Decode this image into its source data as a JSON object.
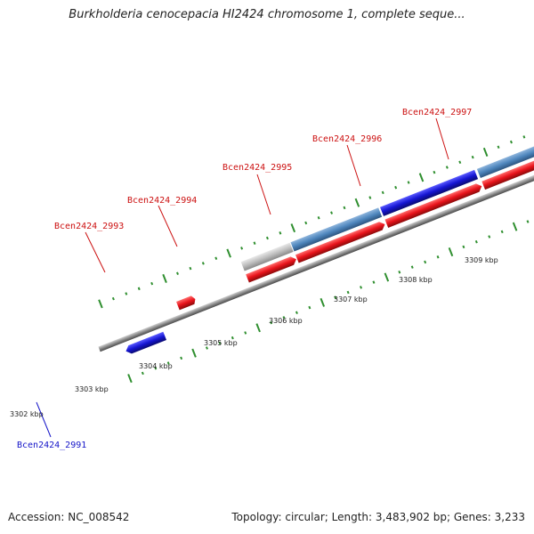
{
  "title": "Burkholderia cenocepacia HI2424 chromosome 1, complete seque...",
  "footer": {
    "accession": "Accession: NC_008542",
    "summary": "Topology: circular; Length: 3,483,902 bp; Genes: 3,233"
  },
  "colors": {
    "cds_forward": "#e8131b",
    "cds_reverse": "#1515d2",
    "gene_steelblue": "#4e86bd",
    "gene_selected": "#1515d2",
    "gene_gray": "#bdbdbd",
    "backbone": "#8a8a8a",
    "tick": "#2f8f2f",
    "label_forward": "#cc1111",
    "label_reverse": "#1414c8"
  },
  "axis": {
    "tick_labels": [
      "3302 kbp",
      "3303 kbp",
      "3304 kbp",
      "3305 kbp",
      "3306 kbp",
      "3307 kbp",
      "3308 kbp",
      "3309 kbp"
    ]
  },
  "gene_labels": [
    {
      "text": "Bcen2424_2991",
      "strand": "reverse"
    },
    {
      "text": "Bcen2424_2993",
      "strand": "forward"
    },
    {
      "text": "Bcen2424_2994",
      "strand": "forward"
    },
    {
      "text": "Bcen2424_2995",
      "strand": "forward"
    },
    {
      "text": "Bcen2424_2996",
      "strand": "forward"
    },
    {
      "text": "Bcen2424_2997",
      "strand": "forward"
    }
  ]
}
